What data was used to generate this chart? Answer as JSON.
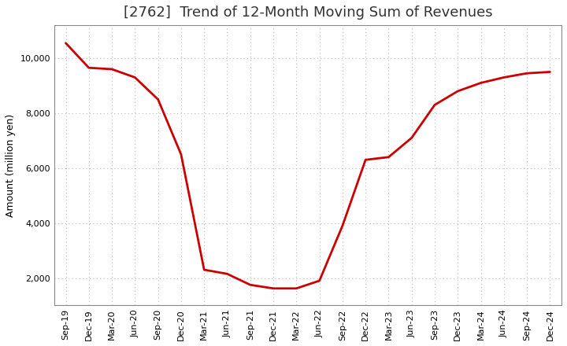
{
  "title": "[2762]  Trend of 12-Month Moving Sum of Revenues",
  "ylabel": "Amount (million yen)",
  "line_color": "#cc0000",
  "background_color": "#ffffff",
  "plot_bg_color": "#ffffff",
  "grid_color": "#bbbbbb",
  "x_labels": [
    "Sep-19",
    "Dec-19",
    "Mar-20",
    "Jun-20",
    "Sep-20",
    "Dec-20",
    "Mar-21",
    "Jun-21",
    "Sep-21",
    "Dec-21",
    "Mar-22",
    "Jun-22",
    "Sep-22",
    "Dec-22",
    "Mar-23",
    "Jun-23",
    "Sep-23",
    "Dec-23",
    "Mar-24",
    "Jun-24",
    "Sep-24",
    "Dec-24"
  ],
  "x_values": [
    0,
    1,
    2,
    3,
    4,
    5,
    6,
    7,
    8,
    9,
    10,
    11,
    12,
    13,
    14,
    15,
    16,
    17,
    18,
    19,
    20,
    21
  ],
  "y_values": [
    10550,
    9650,
    9600,
    9300,
    8500,
    6500,
    2300,
    2150,
    1750,
    1620,
    1620,
    1900,
    3900,
    6300,
    6400,
    7100,
    8300,
    8800,
    9100,
    9300,
    9450,
    9500
  ],
  "ylim": [
    1000,
    11200
  ],
  "yticks": [
    2000,
    4000,
    6000,
    8000,
    10000
  ],
  "ytick_labels": [
    "2,000",
    "4,000",
    "6,000",
    "8,000",
    "10,000"
  ],
  "line_width": 2.0,
  "title_fontsize": 13,
  "axis_fontsize": 9,
  "tick_fontsize": 8
}
